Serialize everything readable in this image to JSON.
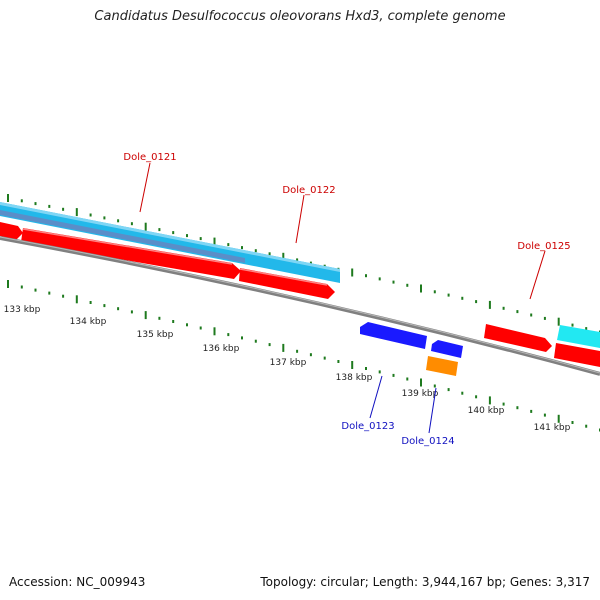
{
  "title": "Candidatus Desulfococcus oleovorans Hxd3, complete genome",
  "footer": {
    "accession": "Accession: NC_009943",
    "summary": "Topology: circular; Length: 3,944,167 bp; Genes: 3,317"
  },
  "colors": {
    "forward_cds": "#ff0000",
    "reverse_cds": "#1a1aff",
    "feature_light_blue": "#22b8ea",
    "feature_cyan": "#22e8f2",
    "feature_orange": "#ff8c00",
    "backbone": "#808080",
    "ticks": "#1e7a1e",
    "label_forward": "#cc0000",
    "label_reverse": "#1010c0"
  },
  "ruler": {
    "unit": "kbp",
    "labels": [
      "133 kbp",
      "134 kbp",
      "135 kbp",
      "136 kbp",
      "137 kbp",
      "138 kbp",
      "139 kbp",
      "140 kbp",
      "141 kbp"
    ]
  },
  "gene_labels": [
    {
      "id": "Dole_0121",
      "strand": "forward"
    },
    {
      "id": "Dole_0122",
      "strand": "forward"
    },
    {
      "id": "Dole_0125",
      "strand": "forward"
    },
    {
      "id": "Dole_0123",
      "strand": "reverse"
    },
    {
      "id": "Dole_0124",
      "strand": "reverse"
    }
  ]
}
